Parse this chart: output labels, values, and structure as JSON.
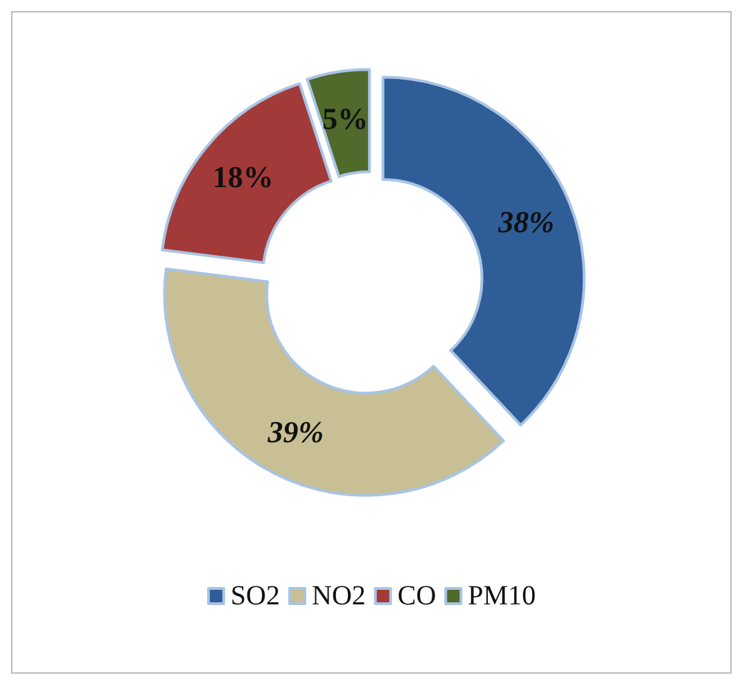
{
  "chart_data": {
    "type": "donut",
    "categories": [
      "SO2",
      "NO2",
      "CO",
      "PM10"
    ],
    "values": [
      38,
      39,
      18,
      5
    ],
    "colors": [
      "#2f5d98",
      "#c8bf94",
      "#a33a3a",
      "#4f6a2a"
    ],
    "value_labels": [
      "38%",
      "39%",
      "18%",
      "5%"
    ],
    "legend": "bottom"
  }
}
